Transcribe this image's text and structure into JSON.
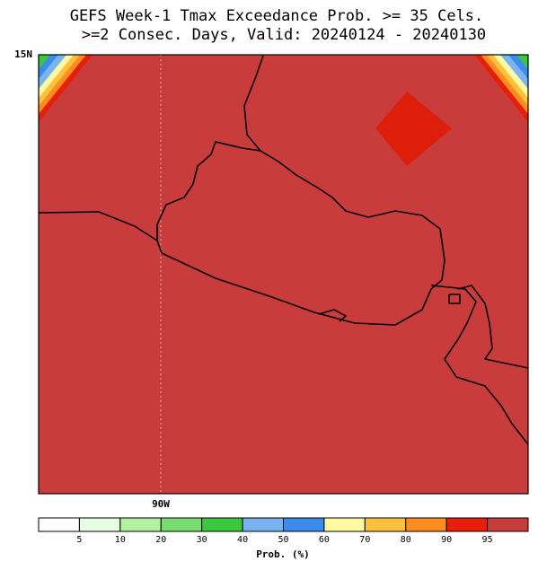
{
  "title": "GEFS Week-1 Tmax Exceedance Prob. >= 35 Cels.",
  "subtitle": ">=2 Consec. Days, Valid: 20240124 - 20240130",
  "lat_label": "15N",
  "lon_label": "90W",
  "colorbar": {
    "colors": [
      "#ffffff",
      "#e6ffe0",
      "#b4f0a0",
      "#78dc6e",
      "#3cc83c",
      "#78b4f0",
      "#3c8cf0",
      "#fffaa0",
      "#ffc03c",
      "#ff8c1e",
      "#e61e0a",
      "#c83c3c"
    ],
    "ticks": [
      5,
      10,
      20,
      30,
      40,
      50,
      60,
      70,
      80,
      90,
      95
    ],
    "label": "Prob. (%)"
  }
}
